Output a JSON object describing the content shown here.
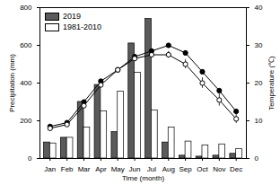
{
  "chart_data": {
    "type": "bar",
    "categories": [
      "Jan",
      "Feb",
      "Mar",
      "Apr",
      "May",
      "Jun",
      "Jul",
      "Aug",
      "Sep",
      "Oct",
      "Nov",
      "Dec"
    ],
    "x_label": "Time (month)",
    "y_label": "Precipitation (mm)",
    "y2_label": "Temperature (℃)",
    "ylim": [
      0,
      800
    ],
    "yticks": [
      0,
      200,
      400,
      600,
      800
    ],
    "y2lim": [
      0,
      40
    ],
    "y2ticks": [
      0,
      10,
      20,
      30,
      40
    ],
    "legend": "upper left",
    "series": [
      {
        "name": "2019",
        "type": "bar",
        "color": "#5a5a5a",
        "values": [
          85,
          110,
          300,
          390,
          140,
          610,
          740,
          85,
          15,
          10,
          15,
          25
        ]
      },
      {
        "name": "1981-2010",
        "type": "bar",
        "color": "#ffffff",
        "values": [
          80,
          110,
          165,
          250,
          355,
          455,
          255,
          165,
          90,
          70,
          75,
          50
        ]
      },
      {
        "name": "2019",
        "type": "line",
        "axis": "y2",
        "color": "#000000",
        "marker": "circle",
        "values": [
          8.5,
          9.5,
          15,
          20.5,
          23.5,
          27,
          28.5,
          30,
          28,
          23,
          18,
          12.5
        ]
      },
      {
        "name": "1981-2010",
        "type": "line",
        "axis": "y2",
        "color": "#000000",
        "marker": "circle-open",
        "values": [
          8,
          9,
          14,
          19.5,
          23.5,
          26.5,
          27.5,
          27.5,
          25,
          20,
          15.5,
          10.5
        ],
        "error": [
          0.5,
          0.5,
          0.8,
          0.8,
          0.6,
          0.8,
          0.8,
          0.9,
          1.2,
          1.4,
          1.6,
          1.2
        ]
      }
    ]
  }
}
